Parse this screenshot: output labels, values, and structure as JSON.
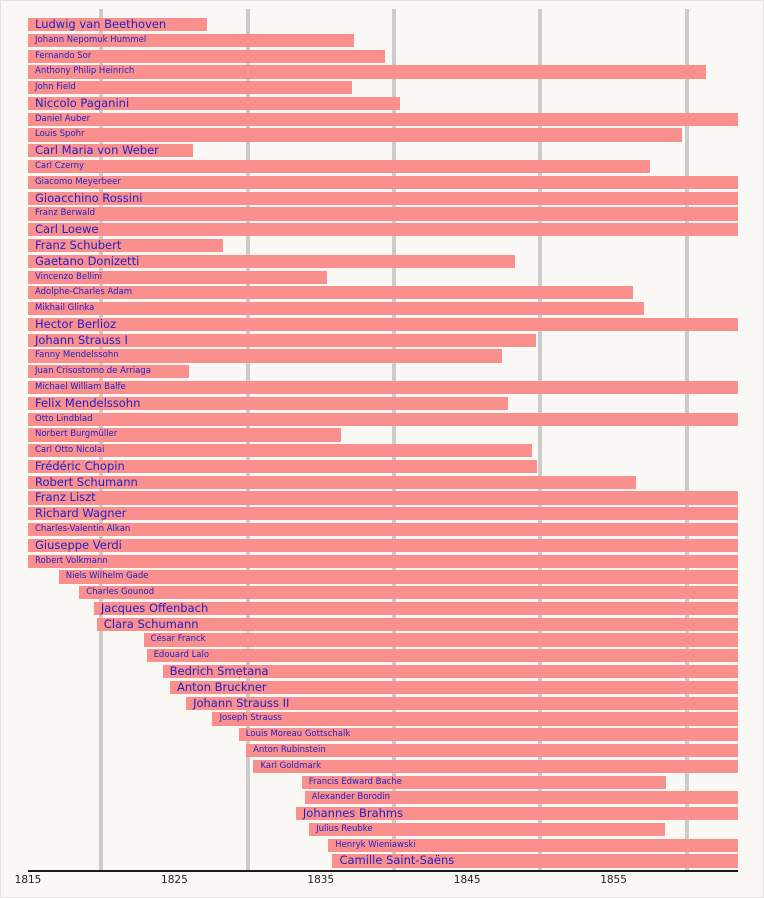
{
  "chart_data": {
    "type": "bar",
    "subtype": "timeline-lifespans",
    "title": "",
    "orientation": "horizontal",
    "axis": {
      "min": 1815,
      "max": 1863.5,
      "tick_labels": [
        "1815",
        "1825",
        "1835",
        "1845",
        "1855"
      ],
      "tick_years": [
        1815,
        1825,
        1835,
        1845,
        1855
      ],
      "gridline_years": [
        1820,
        1830,
        1840,
        1850,
        1860
      ],
      "grid": true,
      "legend": "none"
    },
    "colors": {
      "bg": "#f9f8f4",
      "bar": "#f9908e",
      "label": "#2222c8",
      "grid": "#cbcbcb",
      "axis": "#1a1a1a",
      "tick": "#222222"
    },
    "composers": [
      {
        "name": "Ludwig van Beethoven",
        "start": 1815,
        "end": 1827.2,
        "size": "large"
      },
      {
        "name": "Johann Nepomuk Hummel",
        "start": 1815,
        "end": 1837.3,
        "size": "small"
      },
      {
        "name": "Fernando Sor",
        "start": 1815,
        "end": 1839.4,
        "size": "small"
      },
      {
        "name": "Anthony Philip Heinrich",
        "start": 1815,
        "end": 1861.3,
        "size": "small"
      },
      {
        "name": "John Field",
        "start": 1815,
        "end": 1837.1,
        "size": "small"
      },
      {
        "name": "Niccolo Paganini",
        "start": 1815,
        "end": 1840.4,
        "size": "large"
      },
      {
        "name": "Daniel Auber",
        "start": 1815,
        "end": 1863.5,
        "size": "small"
      },
      {
        "name": "Louis Spohr",
        "start": 1815,
        "end": 1859.7,
        "size": "small"
      },
      {
        "name": "Carl Maria von Weber",
        "start": 1815,
        "end": 1826.3,
        "size": "large"
      },
      {
        "name": "Carl Czerny",
        "start": 1815,
        "end": 1857.5,
        "size": "small"
      },
      {
        "name": "Giacomo Meyerbeer",
        "start": 1815,
        "end": 1863.5,
        "size": "small"
      },
      {
        "name": "Gioacchino Rossini",
        "start": 1815,
        "end": 1863.5,
        "size": "large"
      },
      {
        "name": "Franz Berwald",
        "start": 1815,
        "end": 1863.5,
        "size": "small"
      },
      {
        "name": "Carl Loewe",
        "start": 1815,
        "end": 1863.5,
        "size": "large"
      },
      {
        "name": "Franz Schubert",
        "start": 1815,
        "end": 1828.3,
        "size": "large"
      },
      {
        "name": "Gaetano Donizetti",
        "start": 1815,
        "end": 1848.3,
        "size": "large"
      },
      {
        "name": "Vincenzo Bellini",
        "start": 1815,
        "end": 1835.4,
        "size": "small"
      },
      {
        "name": "Adolphe-Charles Adam",
        "start": 1815,
        "end": 1856.3,
        "size": "small"
      },
      {
        "name": "Mikhail Glinka",
        "start": 1815,
        "end": 1857.1,
        "size": "small"
      },
      {
        "name": "Hector Berlioz",
        "start": 1815,
        "end": 1863.5,
        "size": "large"
      },
      {
        "name": "Johann Strauss I",
        "start": 1815,
        "end": 1849.7,
        "size": "large"
      },
      {
        "name": "Fanny Mendelssohn",
        "start": 1815,
        "end": 1847.4,
        "size": "small"
      },
      {
        "name": "Juan Crisostomo de Arriaga",
        "start": 1815,
        "end": 1826.0,
        "size": "small"
      },
      {
        "name": "Michael William Balfe",
        "start": 1815,
        "end": 1863.5,
        "size": "small"
      },
      {
        "name": "Felix Mendelssohn",
        "start": 1815,
        "end": 1847.8,
        "size": "large"
      },
      {
        "name": "Otto Lindblad",
        "start": 1815,
        "end": 1863.5,
        "size": "small"
      },
      {
        "name": "Norbert Burgmüller",
        "start": 1815,
        "end": 1836.4,
        "size": "small"
      },
      {
        "name": "Carl Otto Nicolai",
        "start": 1815,
        "end": 1849.4,
        "size": "small"
      },
      {
        "name": "Frédéric Chopin",
        "start": 1815,
        "end": 1849.8,
        "size": "large"
      },
      {
        "name": "Robert Schumann",
        "start": 1815,
        "end": 1856.5,
        "size": "large"
      },
      {
        "name": "Franz Liszt",
        "start": 1815,
        "end": 1863.5,
        "size": "large"
      },
      {
        "name": "Richard Wagner",
        "start": 1815,
        "end": 1863.5,
        "size": "large"
      },
      {
        "name": "Charles-Valentin Alkan",
        "start": 1815,
        "end": 1863.5,
        "size": "small"
      },
      {
        "name": "Giuseppe Verdi",
        "start": 1815,
        "end": 1863.5,
        "size": "large"
      },
      {
        "name": "Robert Volkmann",
        "start": 1815,
        "end": 1863.5,
        "size": "small"
      },
      {
        "name": "Niels Wilhelm Gade",
        "start": 1817.1,
        "end": 1863.5,
        "size": "small"
      },
      {
        "name": "Charles Gounod",
        "start": 1818.5,
        "end": 1863.5,
        "size": "small"
      },
      {
        "name": "Jacques Offenbach",
        "start": 1819.5,
        "end": 1863.5,
        "size": "large"
      },
      {
        "name": "Clara Schumann",
        "start": 1819.7,
        "end": 1863.5,
        "size": "large"
      },
      {
        "name": "César Franck",
        "start": 1822.9,
        "end": 1863.5,
        "size": "small"
      },
      {
        "name": "Edouard Lalo",
        "start": 1823.1,
        "end": 1863.5,
        "size": "small"
      },
      {
        "name": "Bedrich Smetana",
        "start": 1824.2,
        "end": 1863.5,
        "size": "large"
      },
      {
        "name": "Anton Bruckner",
        "start": 1824.7,
        "end": 1863.5,
        "size": "large"
      },
      {
        "name": "Johann Strauss II",
        "start": 1825.8,
        "end": 1863.5,
        "size": "large"
      },
      {
        "name": "Joseph Strauss",
        "start": 1827.6,
        "end": 1863.5,
        "size": "small"
      },
      {
        "name": "Louis Moreau Gottschalk",
        "start": 1829.4,
        "end": 1863.5,
        "size": "small"
      },
      {
        "name": "Anton Rubinstein",
        "start": 1829.9,
        "end": 1863.5,
        "size": "small"
      },
      {
        "name": "Karl Goldmark",
        "start": 1830.4,
        "end": 1863.5,
        "size": "small"
      },
      {
        "name": "Francis Edward Bache",
        "start": 1833.7,
        "end": 1858.6,
        "size": "small"
      },
      {
        "name": "Alexander Borodin",
        "start": 1833.9,
        "end": 1863.5,
        "size": "small"
      },
      {
        "name": "Johannes Brahms",
        "start": 1833.3,
        "end": 1863.5,
        "size": "large"
      },
      {
        "name": "Julius Reubke",
        "start": 1834.2,
        "end": 1858.5,
        "size": "small"
      },
      {
        "name": "Henryk Wieniawski",
        "start": 1835.5,
        "end": 1863.5,
        "size": "small"
      },
      {
        "name": "Camille Saint-Saëns",
        "start": 1835.8,
        "end": 1863.5,
        "size": "large"
      }
    ]
  }
}
